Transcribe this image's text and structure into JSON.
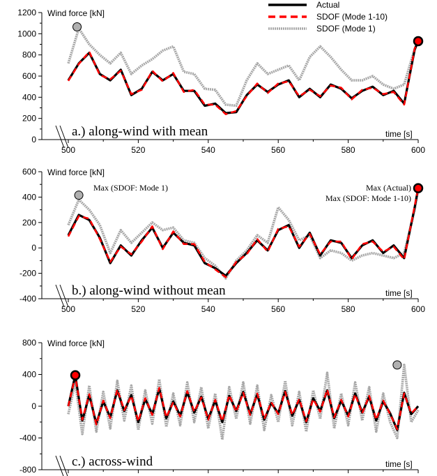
{
  "legend": {
    "entries": [
      {
        "name": "Actual",
        "color": "#000000",
        "style": "solid"
      },
      {
        "name": "SDOF (Mode 1-10)",
        "color": "#ff0000",
        "style": "dashed"
      },
      {
        "name": "SDOF (Mode 1)",
        "color": "#a8a8a8",
        "style": "dotted"
      }
    ]
  },
  "chart_data": [
    {
      "type": "line",
      "panel_label": "a.) along-wind with mean",
      "ylabel": "Wind force [kN]",
      "xlabel": "time [s]",
      "xlim": [
        500,
        600
      ],
      "ylim": [
        0,
        1200
      ],
      "xticks": [
        500,
        520,
        540,
        560,
        580,
        600
      ],
      "yticks": [
        0,
        200,
        400,
        600,
        800,
        1000,
        1200
      ],
      "x": [
        500,
        503,
        506,
        509,
        512,
        515,
        518,
        521,
        524,
        527,
        530,
        533,
        536,
        539,
        542,
        545,
        548,
        551,
        554,
        557,
        560,
        563,
        566,
        569,
        572,
        575,
        578,
        581,
        584,
        587,
        590,
        593,
        596,
        599,
        600
      ],
      "series": [
        {
          "name": "Actual",
          "values": [
            560,
            720,
            820,
            620,
            560,
            660,
            420,
            480,
            640,
            560,
            620,
            460,
            460,
            320,
            340,
            250,
            260,
            420,
            520,
            450,
            520,
            560,
            400,
            480,
            400,
            520,
            480,
            390,
            460,
            500,
            420,
            460,
            340,
            850,
            930
          ]
        },
        {
          "name": "SDOF (Mode 1-10)",
          "values": [
            555,
            715,
            830,
            610,
            570,
            650,
            430,
            470,
            650,
            550,
            630,
            450,
            470,
            330,
            330,
            240,
            270,
            410,
            530,
            440,
            530,
            550,
            410,
            470,
            410,
            510,
            490,
            380,
            470,
            490,
            430,
            450,
            330,
            860,
            930
          ]
        },
        {
          "name": "SDOF (Mode 1)",
          "values": [
            720,
            1050,
            900,
            800,
            720,
            820,
            620,
            700,
            760,
            840,
            880,
            640,
            620,
            480,
            470,
            330,
            320,
            560,
            720,
            620,
            660,
            700,
            560,
            780,
            880,
            780,
            660,
            560,
            560,
            600,
            520,
            480,
            520,
            860,
            930
          ]
        }
      ],
      "markers": [
        {
          "series": "SDOF (Mode 1)",
          "x": 502.5,
          "y": 1065
        },
        {
          "series": "Actual",
          "x": 600,
          "y": 930
        }
      ]
    },
    {
      "type": "line",
      "panel_label": "b.) along-wind without mean",
      "ylabel": "Wind force [kN]",
      "xlabel": "time [s]",
      "xlim": [
        500,
        600
      ],
      "ylim": [
        -400,
        600
      ],
      "xticks": [
        500,
        520,
        540,
        560,
        580,
        600
      ],
      "yticks": [
        -400,
        -200,
        0,
        200,
        400,
        600
      ],
      "x": [
        500,
        503,
        506,
        509,
        512,
        515,
        518,
        521,
        524,
        527,
        530,
        533,
        536,
        539,
        542,
        545,
        548,
        551,
        554,
        557,
        560,
        563,
        566,
        569,
        572,
        575,
        578,
        581,
        584,
        587,
        590,
        593,
        596,
        599,
        600
      ],
      "series": [
        {
          "name": "Actual",
          "values": [
            100,
            260,
            220,
            80,
            -120,
            20,
            -60,
            60,
            160,
            0,
            120,
            40,
            20,
            -120,
            -160,
            -220,
            -120,
            -40,
            60,
            -20,
            140,
            180,
            0,
            120,
            -60,
            60,
            40,
            -80,
            20,
            60,
            -40,
            20,
            -80,
            320,
            470
          ]
        },
        {
          "name": "SDOF (Mode 1-10)",
          "values": [
            90,
            250,
            230,
            70,
            -110,
            10,
            -50,
            50,
            170,
            -10,
            130,
            30,
            30,
            -110,
            -170,
            -230,
            -110,
            -50,
            70,
            -30,
            150,
            170,
            10,
            110,
            -50,
            50,
            50,
            -90,
            30,
            50,
            -30,
            10,
            -90,
            330,
            470
          ]
        },
        {
          "name": "SDOF (Mode 1)",
          "values": [
            180,
            380,
            300,
            180,
            -40,
            140,
            40,
            120,
            200,
            140,
            160,
            60,
            40,
            -80,
            -140,
            -240,
            -100,
            -20,
            100,
            40,
            320,
            220,
            60,
            100,
            -80,
            -20,
            -40,
            -100,
            -60,
            -40,
            -60,
            -80,
            -40,
            300,
            460
          ]
        }
      ],
      "markers": [
        {
          "series": "SDOF (Mode 1)",
          "x": 503,
          "y": 415
        },
        {
          "series": "Actual",
          "x": 600,
          "y": 470
        }
      ],
      "annotations": [
        {
          "text": "Max (SDOF: Mode 1)"
        },
        {
          "text": "Max (Actual)"
        },
        {
          "text": "Max (SDOF: Mode 1-10)"
        }
      ]
    },
    {
      "type": "line",
      "panel_label": "c.) across-wind",
      "ylabel": "Wind force [kN]",
      "xlabel": "time [s]",
      "xlim": [
        500,
        600
      ],
      "ylim": [
        -800,
        800
      ],
      "yticks": [
        -800,
        -400,
        0,
        400,
        800
      ],
      "x": [
        500,
        502,
        504,
        506,
        508,
        510,
        512,
        514,
        516,
        518,
        520,
        522,
        524,
        526,
        528,
        530,
        532,
        534,
        536,
        538,
        540,
        542,
        544,
        546,
        548,
        550,
        552,
        554,
        556,
        558,
        560,
        562,
        564,
        566,
        568,
        570,
        572,
        574,
        576,
        578,
        580,
        582,
        584,
        586,
        588,
        590,
        592,
        594,
        596,
        598,
        600
      ],
      "series": [
        {
          "name": "Actual",
          "values": [
            0,
            390,
            -180,
            140,
            -220,
            60,
            -140,
            200,
            -60,
            140,
            -200,
            90,
            -100,
            220,
            -150,
            60,
            -120,
            180,
            -80,
            120,
            -160,
            70,
            -200,
            130,
            -60,
            180,
            -100,
            150,
            -170,
            40,
            -90,
            190,
            -120,
            80,
            -200,
            100,
            -60,
            200,
            -150,
            70,
            -120,
            160,
            -80,
            120,
            -180,
            60,
            -90,
            -300,
            170,
            -100,
            0
          ]
        },
        {
          "name": "SDOF (Mode 1-10)",
          "values": [
            0,
            380,
            -170,
            150,
            -230,
            70,
            -150,
            210,
            -50,
            130,
            -190,
            100,
            -110,
            230,
            -140,
            50,
            -130,
            190,
            -70,
            110,
            -170,
            80,
            -190,
            140,
            -70,
            170,
            -110,
            160,
            -160,
            50,
            -100,
            180,
            -110,
            90,
            -190,
            90,
            -70,
            210,
            -140,
            80,
            -130,
            150,
            -90,
            130,
            -170,
            70,
            -100,
            -290,
            160,
            -90,
            0
          ]
        },
        {
          "name": "SDOF (Mode 1)",
          "values": [
            -100,
            300,
            -350,
            260,
            -320,
            180,
            -280,
            320,
            -180,
            260,
            -300,
            200,
            -220,
            340,
            -260,
            160,
            -240,
            300,
            -200,
            240,
            -280,
            160,
            -420,
            240,
            -160,
            300,
            -220,
            260,
            -300,
            140,
            -200,
            320,
            -240,
            180,
            -320,
            200,
            -160,
            420,
            -280,
            160,
            -240,
            300,
            -180,
            240,
            -320,
            160,
            -200,
            -400,
            520,
            -200,
            -50
          ]
        }
      ],
      "markers": [
        {
          "series": "Actual",
          "x": 502,
          "y": 390
        },
        {
          "series": "SDOF (Mode 1)",
          "x": 594,
          "y": 520
        }
      ]
    }
  ]
}
